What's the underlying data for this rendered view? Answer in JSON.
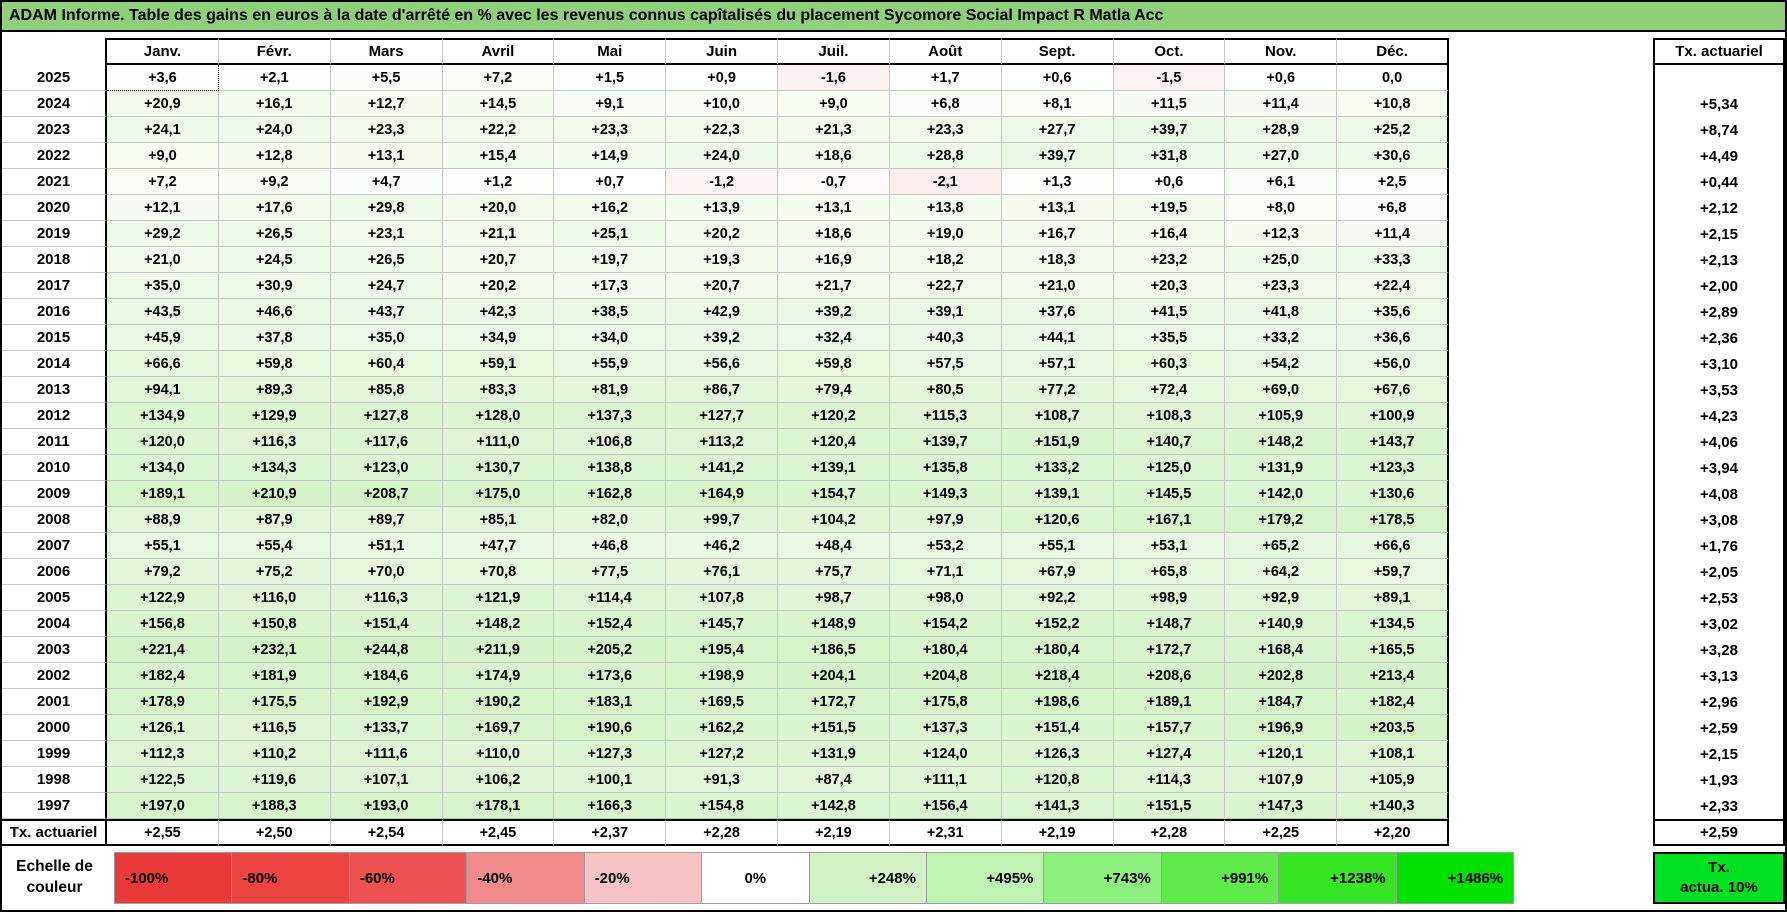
{
  "header": {
    "title": "ADAM Informe. Table des gains en euros à la date d'arrêté en % avec les revenus connus capîtalisés du placement Sycomore Social Impact R Matla Acc"
  },
  "selection": {
    "row": 0,
    "col": 0
  },
  "colors": {
    "title_bg": "#8FCE7B",
    "note_bg": "#00E221",
    "grid": "#C6C6C6",
    "positive_stops": [
      [
        0,
        "#FFFFFF"
      ],
      [
        8,
        "#F7FCF4"
      ],
      [
        25,
        "#EFF9EA"
      ],
      [
        60,
        "#E7F7E0"
      ],
      [
        120,
        "#DEF5D4"
      ],
      [
        180,
        "#D7F3CB"
      ],
      [
        248,
        "#D2F2C5"
      ],
      [
        495,
        "#BFF3B3"
      ],
      [
        743,
        "#8DEF7E"
      ],
      [
        991,
        "#5FEB4A"
      ],
      [
        1238,
        "#36E523"
      ],
      [
        1486,
        "#00E100"
      ]
    ],
    "negative_stops": [
      [
        0,
        "#FFFFFF"
      ],
      [
        2,
        "#FAEDED"
      ],
      [
        20,
        "#F5C3C3"
      ],
      [
        40,
        "#F18B8B"
      ],
      [
        60,
        "#EE5151"
      ],
      [
        80,
        "#EC4343"
      ],
      [
        100,
        "#EA3939"
      ]
    ]
  },
  "chart_data": {
    "type": "table",
    "title": "ADAM Informe. Table des gains en euros à la date d'arrêté en % avec les revenus connus capîtalisés du placement Sycomore Social Impact R Matla Acc",
    "months": [
      "Janv.",
      "Févr.",
      "Mars",
      "Avril",
      "Mai",
      "Juin",
      "Juil.",
      "Août",
      "Sept.",
      "Oct.",
      "Nov.",
      "Déc."
    ],
    "rate_column_header": "Tx. actuariel",
    "rows": [
      {
        "y": "2025",
        "v": [
          "+3,6",
          "+2,1",
          "+5,5",
          "+7,2",
          "+1,5",
          "+0,9",
          "-1,6",
          "+1,7",
          "+0,6",
          "-1,5",
          "+0,6",
          "0,0"
        ],
        "r": ""
      },
      {
        "y": "2024",
        "v": [
          "+20,9",
          "+16,1",
          "+12,7",
          "+14,5",
          "+9,1",
          "+10,0",
          "+9,0",
          "+6,8",
          "+8,1",
          "+11,5",
          "+11,4",
          "+10,8"
        ],
        "r": "+5,34"
      },
      {
        "y": "2023",
        "v": [
          "+24,1",
          "+24,0",
          "+23,3",
          "+22,2",
          "+23,3",
          "+22,3",
          "+21,3",
          "+23,3",
          "+27,7",
          "+39,7",
          "+28,9",
          "+25,2"
        ],
        "r": "+8,74"
      },
      {
        "y": "2022",
        "v": [
          "+9,0",
          "+12,8",
          "+13,1",
          "+15,4",
          "+14,9",
          "+24,0",
          "+18,6",
          "+28,8",
          "+39,7",
          "+31,8",
          "+27,0",
          "+30,6"
        ],
        "r": "+4,49"
      },
      {
        "y": "2021",
        "v": [
          "+7,2",
          "+9,2",
          "+4,7",
          "+1,2",
          "+0,7",
          "-1,2",
          "-0,7",
          "-2,1",
          "+1,3",
          "+0,6",
          "+6,1",
          "+2,5"
        ],
        "r": "+0,44"
      },
      {
        "y": "2020",
        "v": [
          "+12,1",
          "+17,6",
          "+29,8",
          "+20,0",
          "+16,2",
          "+13,9",
          "+13,1",
          "+13,8",
          "+13,1",
          "+19,5",
          "+8,0",
          "+6,8"
        ],
        "r": "+2,12"
      },
      {
        "y": "2019",
        "v": [
          "+29,2",
          "+26,5",
          "+23,1",
          "+21,1",
          "+25,1",
          "+20,2",
          "+18,6",
          "+19,0",
          "+16,7",
          "+16,4",
          "+12,3",
          "+11,4"
        ],
        "r": "+2,15"
      },
      {
        "y": "2018",
        "v": [
          "+21,0",
          "+24,5",
          "+26,5",
          "+20,7",
          "+19,7",
          "+19,3",
          "+16,9",
          "+18,2",
          "+18,3",
          "+23,2",
          "+25,0",
          "+33,3"
        ],
        "r": "+2,13"
      },
      {
        "y": "2017",
        "v": [
          "+35,0",
          "+30,9",
          "+24,7",
          "+20,2",
          "+17,3",
          "+20,7",
          "+21,7",
          "+22,7",
          "+21,0",
          "+20,3",
          "+23,3",
          "+22,4"
        ],
        "r": "+2,00"
      },
      {
        "y": "2016",
        "v": [
          "+43,5",
          "+46,6",
          "+43,7",
          "+42,3",
          "+38,5",
          "+42,9",
          "+39,2",
          "+39,1",
          "+37,6",
          "+41,5",
          "+41,8",
          "+35,6"
        ],
        "r": "+2,89"
      },
      {
        "y": "2015",
        "v": [
          "+45,9",
          "+37,8",
          "+35,0",
          "+34,9",
          "+34,0",
          "+39,2",
          "+32,4",
          "+40,3",
          "+44,1",
          "+35,5",
          "+33,2",
          "+36,6"
        ],
        "r": "+2,36"
      },
      {
        "y": "2014",
        "v": [
          "+66,6",
          "+59,8",
          "+60,4",
          "+59,1",
          "+55,9",
          "+56,6",
          "+59,8",
          "+57,5",
          "+57,1",
          "+60,3",
          "+54,2",
          "+56,0"
        ],
        "r": "+3,10"
      },
      {
        "y": "2013",
        "v": [
          "+94,1",
          "+89,3",
          "+85,8",
          "+83,3",
          "+81,9",
          "+86,7",
          "+79,4",
          "+80,5",
          "+77,2",
          "+72,4",
          "+69,0",
          "+67,6"
        ],
        "r": "+3,53"
      },
      {
        "y": "2012",
        "v": [
          "+134,9",
          "+129,9",
          "+127,8",
          "+128,0",
          "+137,3",
          "+127,7",
          "+120,2",
          "+115,3",
          "+108,7",
          "+108,3",
          "+105,9",
          "+100,9"
        ],
        "r": "+4,23"
      },
      {
        "y": "2011",
        "v": [
          "+120,0",
          "+116,3",
          "+117,6",
          "+111,0",
          "+106,8",
          "+113,2",
          "+120,4",
          "+139,7",
          "+151,9",
          "+140,7",
          "+148,2",
          "+143,7"
        ],
        "r": "+4,06"
      },
      {
        "y": "2010",
        "v": [
          "+134,0",
          "+134,3",
          "+123,0",
          "+130,7",
          "+138,8",
          "+141,2",
          "+139,1",
          "+135,8",
          "+133,2",
          "+125,0",
          "+131,9",
          "+123,3"
        ],
        "r": "+3,94"
      },
      {
        "y": "2009",
        "v": [
          "+189,1",
          "+210,9",
          "+208,7",
          "+175,0",
          "+162,8",
          "+164,9",
          "+154,7",
          "+149,3",
          "+139,1",
          "+145,5",
          "+142,0",
          "+130,6"
        ],
        "r": "+4,08"
      },
      {
        "y": "2008",
        "v": [
          "+88,9",
          "+87,9",
          "+89,7",
          "+85,1",
          "+82,0",
          "+99,7",
          "+104,2",
          "+97,9",
          "+120,6",
          "+167,1",
          "+179,2",
          "+178,5"
        ],
        "r": "+3,08"
      },
      {
        "y": "2007",
        "v": [
          "+55,1",
          "+55,4",
          "+51,1",
          "+47,7",
          "+46,8",
          "+46,2",
          "+48,4",
          "+53,2",
          "+55,1",
          "+53,1",
          "+65,2",
          "+66,6"
        ],
        "r": "+1,76"
      },
      {
        "y": "2006",
        "v": [
          "+79,2",
          "+75,2",
          "+70,0",
          "+70,8",
          "+77,5",
          "+76,1",
          "+75,7",
          "+71,1",
          "+67,9",
          "+65,8",
          "+64,2",
          "+59,7"
        ],
        "r": "+2,05"
      },
      {
        "y": "2005",
        "v": [
          "+122,9",
          "+116,0",
          "+116,3",
          "+121,9",
          "+114,4",
          "+107,8",
          "+98,7",
          "+98,0",
          "+92,2",
          "+98,9",
          "+92,9",
          "+89,1"
        ],
        "r": "+2,53"
      },
      {
        "y": "2004",
        "v": [
          "+156,8",
          "+150,8",
          "+151,4",
          "+148,2",
          "+152,4",
          "+145,7",
          "+148,9",
          "+154,2",
          "+152,2",
          "+148,7",
          "+140,9",
          "+134,5"
        ],
        "r": "+3,02"
      },
      {
        "y": "2003",
        "v": [
          "+221,4",
          "+232,1",
          "+244,8",
          "+211,9",
          "+205,2",
          "+195,4",
          "+186,5",
          "+180,4",
          "+180,4",
          "+172,7",
          "+168,4",
          "+165,5"
        ],
        "r": "+3,28"
      },
      {
        "y": "2002",
        "v": [
          "+182,4",
          "+181,9",
          "+184,6",
          "+174,9",
          "+173,6",
          "+198,9",
          "+204,1",
          "+204,8",
          "+218,4",
          "+208,6",
          "+202,8",
          "+213,4"
        ],
        "r": "+3,13"
      },
      {
        "y": "2001",
        "v": [
          "+178,9",
          "+175,5",
          "+192,9",
          "+190,2",
          "+183,1",
          "+169,5",
          "+172,7",
          "+175,8",
          "+198,6",
          "+189,1",
          "+184,7",
          "+182,4"
        ],
        "r": "+2,96"
      },
      {
        "y": "2000",
        "v": [
          "+126,1",
          "+116,5",
          "+133,7",
          "+169,7",
          "+190,6",
          "+162,2",
          "+151,5",
          "+137,3",
          "+151,4",
          "+157,7",
          "+196,9",
          "+203,5"
        ],
        "r": "+2,59"
      },
      {
        "y": "1999",
        "v": [
          "+112,3",
          "+110,2",
          "+111,6",
          "+110,0",
          "+127,3",
          "+127,2",
          "+131,9",
          "+124,0",
          "+126,3",
          "+127,4",
          "+120,1",
          "+108,1"
        ],
        "r": "+2,15"
      },
      {
        "y": "1998",
        "v": [
          "+122,5",
          "+119,6",
          "+107,1",
          "+106,2",
          "+100,1",
          "+91,3",
          "+87,4",
          "+111,1",
          "+120,8",
          "+114,3",
          "+107,9",
          "+105,9"
        ],
        "r": "+1,93"
      },
      {
        "y": "1997",
        "v": [
          "+197,0",
          "+188,3",
          "+193,0",
          "+178,1",
          "+166,3",
          "+154,8",
          "+142,8",
          "+156,4",
          "+141,3",
          "+151,5",
          "+147,3",
          "+140,3"
        ],
        "r": "+2,33"
      }
    ],
    "footer_row": {
      "label": "Tx. actuariel",
      "v": [
        "+2,55",
        "+2,50",
        "+2,54",
        "+2,45",
        "+2,37",
        "+2,28",
        "+2,19",
        "+2,31",
        "+2,19",
        "+2,28",
        "+2,25",
        "+2,20"
      ],
      "r": "+2,59"
    },
    "legend": {
      "label_line1": "Echelle de",
      "label_line2": "couleur",
      "entries": [
        "-100%",
        "-80%",
        "-60%",
        "-40%",
        "-20%",
        "0%",
        "+248%",
        "+495%",
        "+743%",
        "+991%",
        "+1238%",
        "+1486%"
      ],
      "note_line1": "Tx.",
      "note_line2": "actua. 10%"
    }
  }
}
